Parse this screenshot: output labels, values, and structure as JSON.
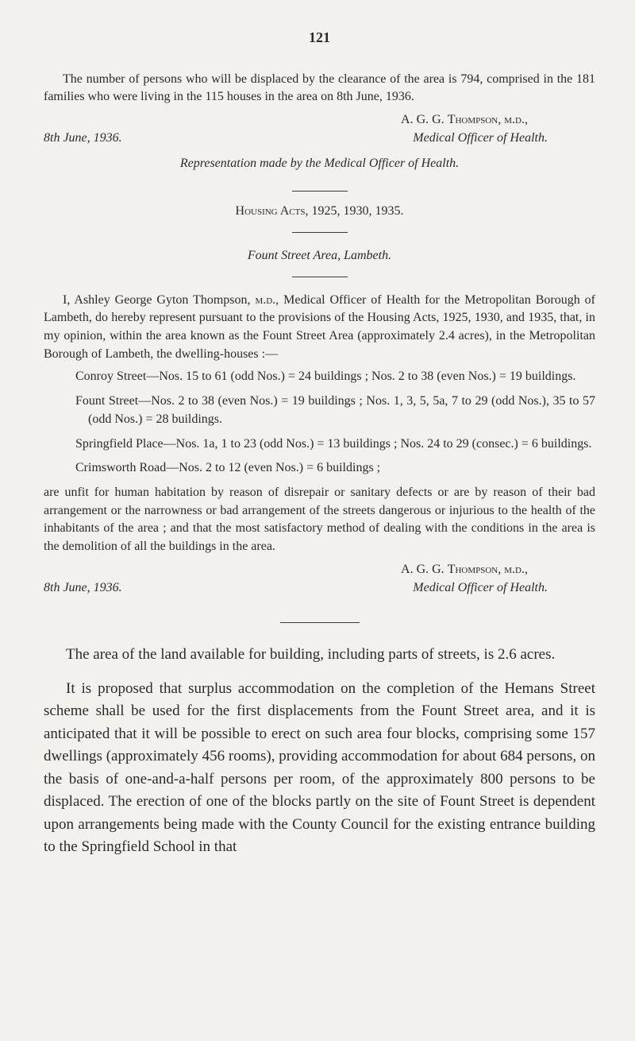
{
  "page_number": "121",
  "intro_para": "The number of persons who will be displaced by the clearance of the area is 794, comprised in the 181 families who were living in the 115 houses in the area on 8th June, 1936.",
  "sig1": {
    "name_line": "A. G. G. Thompson, m.d.,",
    "date": "8th June, 1936.",
    "title": "Medical Officer of Health."
  },
  "representation": "Representation made by the Medical Officer of Health.",
  "acts_heading": "Housing Acts, 1925, 1930, 1935.",
  "area_heading": "Fount Street Area, Lambeth.",
  "body_para": "I, Ashley George Gyton Thompson, m.d., Medical Officer of Health for the Metropolitan Borough of Lambeth, do hereby represent pursuant to the provisions of the Housing Acts, 1925, 1930, and 1935, that, in my opinion, within the area known as the Fount Street Area (approximately 2.4 acres), in the Metropolitan Borough of Lambeth, the dwelling-houses :—",
  "streets": {
    "conroy": "Conroy Street—Nos. 15 to 61 (odd Nos.) = 24 buildings ; Nos. 2 to 38 (even Nos.) = 19 buildings.",
    "fount": "Fount Street—Nos. 2 to 38 (even Nos.) = 19 buildings ; Nos. 1, 3, 5, 5a, 7 to 29 (odd Nos.), 35 to 57 (odd Nos.) = 28 buildings.",
    "springfield": "Springfield Place—Nos. 1a, 1 to 23 (odd Nos.) = 13 buildings ; Nos. 24 to 29 (consec.) = 6 buildings.",
    "crimsworth": "Crimsworth Road—Nos. 2 to 12 (even Nos.) = 6 buildings ;"
  },
  "unfit_para": "are unfit for human habitation by reason of disrepair or sanitary defects or are by reason of their bad arrangement or the narrowness or bad arrangement of the streets dangerous or injurious to the health of the inhabitants of the area ; and that the most satisfactory method of dealing with the conditions in the area is the demolition of all the buildings in the area.",
  "sig2": {
    "name_line": "A. G. G. Thompson, m.d.,",
    "date": "8th June, 1936.",
    "title": "Medical Officer of Health."
  },
  "land_para": "The area of the land available for building, including parts of streets, is 2.6 acres.",
  "final_para": "It is proposed that surplus accommodation on the completion of the Hemans Street scheme shall be used for the first displacements from the Fount Street area, and it is anticipated that it will be possible to erect on such area four blocks, comprising some 157 dwellings (approximately 456 rooms), providing accommodation for about 684 persons, on the basis of one-and-a-half persons per room, of the approximately 800 persons to be displaced. The erection of one of the blocks partly on the site of Fount Street is dependent upon arrangements being made with the County Council for the existing entrance building to the Springfield School in that"
}
